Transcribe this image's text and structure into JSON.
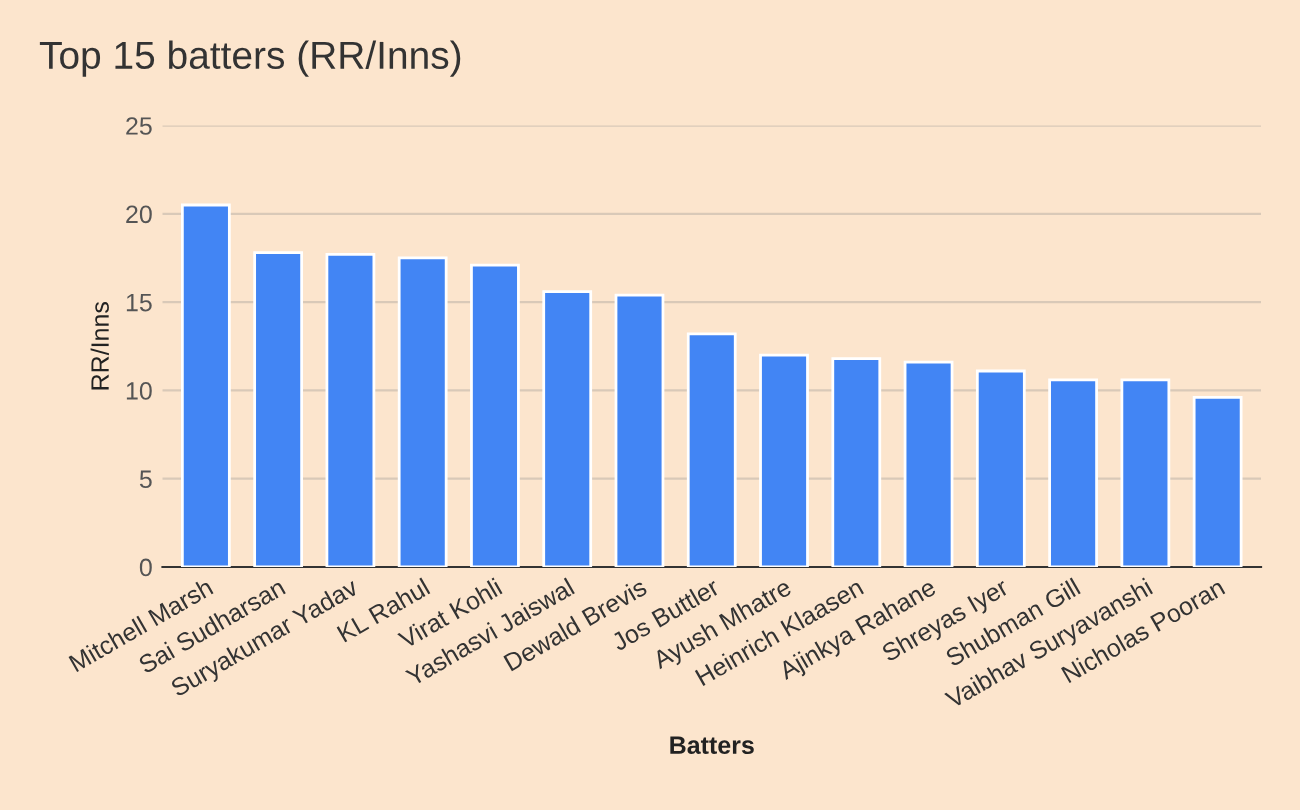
{
  "chart_data": {
    "type": "bar",
    "title": "Top 15 batters (RR/Inns)",
    "xlabel": "Batters",
    "ylabel": "RR/Inns",
    "categories": [
      "Mitchell Marsh",
      "Sai Sudharsan",
      "Suryakumar Yadav",
      "KL Rahul",
      "Virat Kohli",
      "Yashasvi Jaiswal",
      "Dewald Brevis",
      "Jos Buttler",
      "Ayush Mhatre",
      "Heinrich Klaasen",
      "Ajinkya Rahane",
      "Shreyas Iyer",
      "Shubman Gill",
      "Vaibhav Suryavanshi",
      "Nicholas Pooran"
    ],
    "values": [
      20.5,
      17.8,
      17.7,
      17.5,
      17.1,
      15.6,
      15.4,
      13.2,
      12.0,
      11.8,
      11.6,
      11.1,
      10.6,
      10.6,
      9.6
    ],
    "color": "#4285f4",
    "ylim": [
      0,
      25
    ],
    "yticks": [
      0,
      5,
      10,
      15,
      20,
      25
    ],
    "grid": "y",
    "legend": false
  }
}
